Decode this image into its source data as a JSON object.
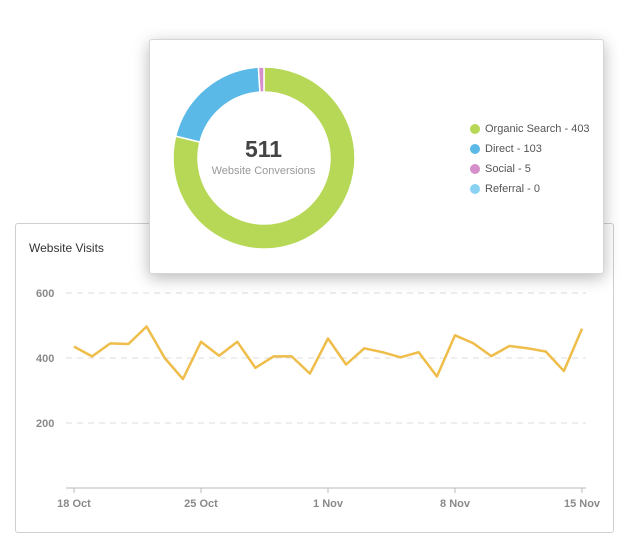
{
  "chart_data": [
    {
      "type": "line",
      "title": "Website Visits",
      "xlabel": "",
      "ylabel": "",
      "x_start": "2023-10-18",
      "x_tick_labels": [
        "18 Oct",
        "25 Oct",
        "1 Nov",
        "8 Nov",
        "15 Nov"
      ],
      "y_ticks": [
        200,
        400,
        600
      ],
      "ylim": [
        0,
        600
      ],
      "grid": true,
      "series": [
        {
          "color": "#eebd4a",
          "x": [
            "18 Oct",
            "19 Oct",
            "20 Oct",
            "21 Oct",
            "22 Oct",
            "23 Oct",
            "24 Oct",
            "25 Oct",
            "26 Oct",
            "27 Oct",
            "28 Oct",
            "29 Oct",
            "30 Oct",
            "31 Oct",
            "1 Nov",
            "2 Nov",
            "3 Nov",
            "4 Nov",
            "5 Nov",
            "6 Nov",
            "7 Nov",
            "8 Nov",
            "9 Nov",
            "10 Nov",
            "11 Nov",
            "12 Nov",
            "13 Nov",
            "14 Nov",
            "15 Nov"
          ],
          "values": [
            435,
            405,
            445,
            443,
            497,
            400,
            335,
            450,
            407,
            450,
            370,
            405,
            405,
            352,
            460,
            380,
            430,
            418,
            402,
            418,
            343,
            470,
            446,
            406,
            437,
            430,
            420,
            360,
            490
          ]
        }
      ]
    },
    {
      "type": "pie",
      "center_value": "511",
      "center_label": "Website Conversions",
      "slices": [
        {
          "label": "Organic Search",
          "value": 403,
          "legend": "Organic Search - 403",
          "color": "#b7d857"
        },
        {
          "label": "Direct",
          "value": 103,
          "legend": "Direct - 103",
          "color": "#5ab9e6"
        },
        {
          "label": "Social",
          "value": 5,
          "legend": "Social - 5",
          "color": "#d58fca"
        },
        {
          "label": "Referral",
          "value": 0,
          "legend": "Referral - 0",
          "color": "#8ad2f4"
        }
      ],
      "legend_position": "right"
    }
  ]
}
